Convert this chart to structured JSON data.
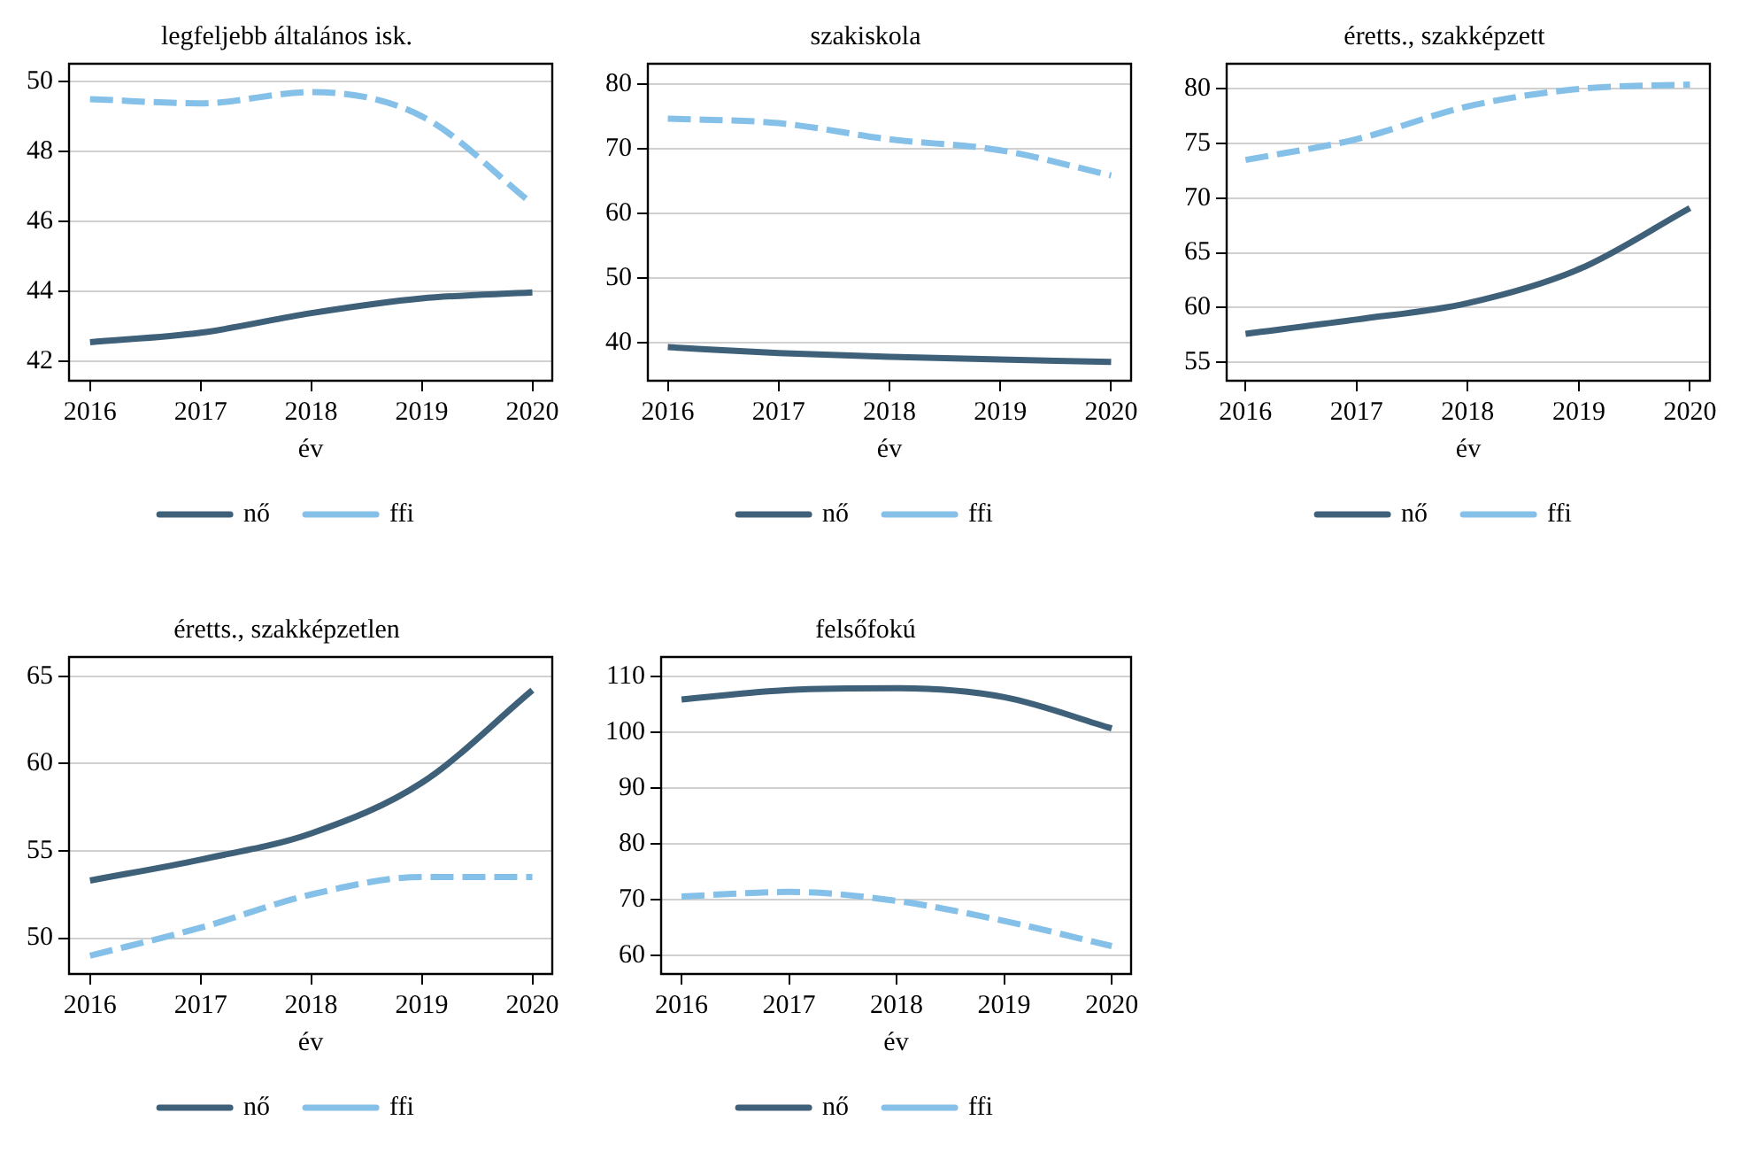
{
  "chart_data": [
    {
      "type": "line",
      "title": "legfeljebb általános isk.",
      "xlabel": "év",
      "x": [
        2016,
        2017,
        2018,
        2019,
        2020
      ],
      "xlim": [
        2015.81,
        2020.18
      ],
      "xticks": [
        2016,
        2017,
        2018,
        2019,
        2020
      ],
      "ylim": [
        41.45,
        50.5
      ],
      "yticks": [
        42,
        44,
        46,
        48,
        50
      ],
      "grid": "y",
      "legend": "bottom",
      "series": [
        {
          "name": "nő",
          "color": "#3f6079",
          "line_style": "solid",
          "values": [
            42.55,
            42.82,
            43.38,
            43.8,
            43.97
          ]
        },
        {
          "name": "ffi",
          "color": "#85c0e9",
          "line_style": "dashed",
          "values": [
            49.49,
            49.37,
            49.69,
            49.0,
            46.5
          ]
        }
      ]
    },
    {
      "type": "line",
      "title": "szakiskola",
      "xlabel": "év",
      "x": [
        2016,
        2017,
        2018,
        2019,
        2020
      ],
      "xlim": [
        2015.82,
        2020.18
      ],
      "xticks": [
        2016,
        2017,
        2018,
        2019,
        2020
      ],
      "ylim": [
        34.1,
        83.2
      ],
      "yticks": [
        40,
        50,
        60,
        70,
        80
      ],
      "grid": "y",
      "legend": "bottom",
      "series": [
        {
          "name": "nő",
          "color": "#3f6079",
          "line_style": "solid",
          "values": [
            39.3,
            38.4,
            37.8,
            37.4,
            37.0
          ]
        },
        {
          "name": "ffi",
          "color": "#85c0e9",
          "line_style": "dashed",
          "values": [
            74.7,
            74.0,
            71.5,
            69.8,
            65.9
          ]
        }
      ]
    },
    {
      "type": "line",
      "title": "éretts., szakképzett",
      "xlabel": "év",
      "x": [
        2016,
        2017,
        2018,
        2019,
        2020
      ],
      "xlim": [
        2015.83,
        2020.18
      ],
      "xticks": [
        2016,
        2017,
        2018,
        2019,
        2020
      ],
      "ylim": [
        53.3,
        82.3
      ],
      "yticks": [
        55,
        60,
        65,
        70,
        75,
        80
      ],
      "grid": "y",
      "legend": "bottom",
      "series": [
        {
          "name": "nő",
          "color": "#3f6079",
          "line_style": "solid",
          "values": [
            57.6,
            58.9,
            60.4,
            63.5,
            69.1
          ]
        },
        {
          "name": "ffi",
          "color": "#85c0e9",
          "line_style": "dashed",
          "values": [
            73.5,
            75.4,
            78.4,
            80.0,
            80.4
          ]
        }
      ]
    },
    {
      "type": "line",
      "title": "éretts., szakképzetlen",
      "xlabel": "év",
      "x": [
        2016,
        2017,
        2018,
        2019,
        2020
      ],
      "xlim": [
        2015.81,
        2020.18
      ],
      "xticks": [
        2016,
        2017,
        2018,
        2019,
        2020
      ],
      "ylim": [
        47.95,
        66.1
      ],
      "yticks": [
        50,
        55,
        60,
        65
      ],
      "grid": "y",
      "legend": "bottom",
      "series": [
        {
          "name": "nő",
          "color": "#3f6079",
          "line_style": "solid",
          "values": [
            53.3,
            54.5,
            56.0,
            58.9,
            64.2
          ]
        },
        {
          "name": "ffi",
          "color": "#85c0e9",
          "line_style": "dashed",
          "values": [
            49.0,
            50.6,
            52.5,
            53.5,
            53.5
          ]
        }
      ]
    },
    {
      "type": "line",
      "title": "felsőfokú",
      "xlabel": "év",
      "x": [
        2016,
        2017,
        2018,
        2019,
        2020
      ],
      "xlim": [
        2015.81,
        2020.18
      ],
      "xticks": [
        2016,
        2017,
        2018,
        2019,
        2020
      ],
      "ylim": [
        56.7,
        113.5
      ],
      "yticks": [
        60,
        70,
        80,
        90,
        100,
        110
      ],
      "grid": "y",
      "legend": "bottom",
      "series": [
        {
          "name": "nő",
          "color": "#3f6079",
          "line_style": "solid",
          "values": [
            105.9,
            107.6,
            107.9,
            106.3,
            100.7
          ]
        },
        {
          "name": "ffi",
          "color": "#85c0e9",
          "line_style": "dashed",
          "values": [
            70.6,
            71.4,
            69.8,
            66.2,
            61.7
          ]
        }
      ]
    }
  ]
}
